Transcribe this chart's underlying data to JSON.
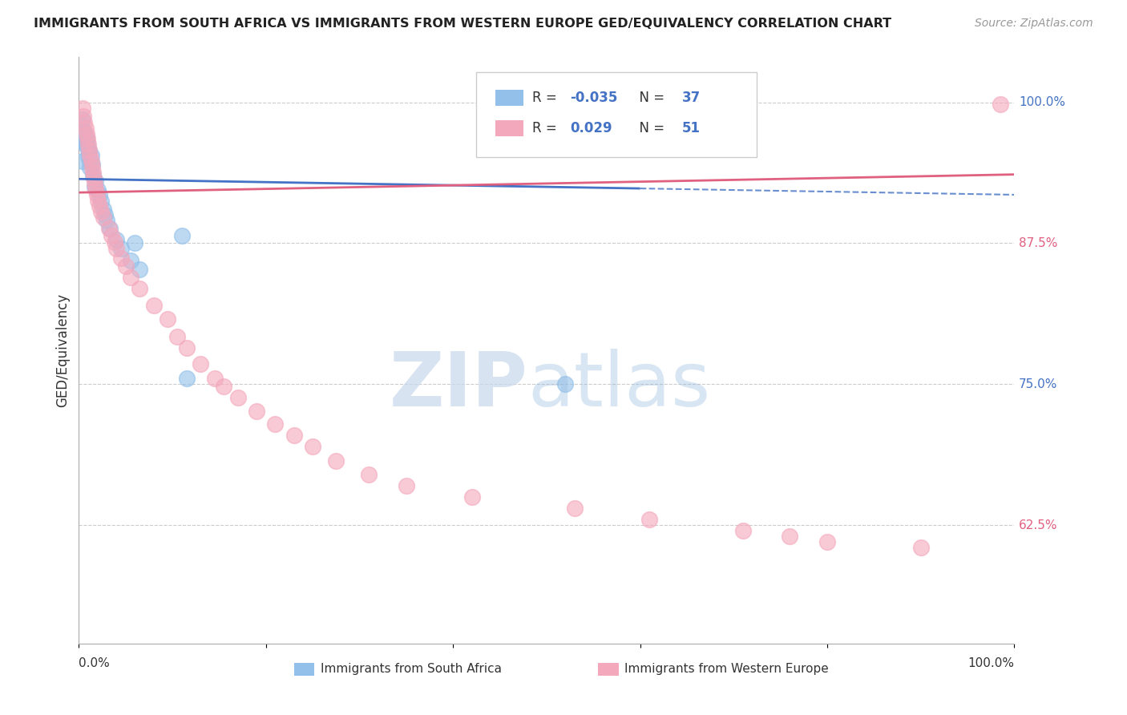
{
  "title": "IMMIGRANTS FROM SOUTH AFRICA VS IMMIGRANTS FROM WESTERN EUROPE GED/EQUIVALENCY CORRELATION CHART",
  "source": "Source: ZipAtlas.com",
  "ylabel": "GED/Equivalency",
  "ytick_values": [
    0.625,
    0.75,
    0.875,
    1.0
  ],
  "xlim": [
    0.0,
    1.0
  ],
  "ylim": [
    0.52,
    1.04
  ],
  "legend_r_blue": "-0.035",
  "legend_n_blue": "37",
  "legend_r_pink": "0.029",
  "legend_n_pink": "51",
  "legend_label_blue": "Immigrants from South Africa",
  "legend_label_pink": "Immigrants from Western Europe",
  "blue_color": "#92C0EA",
  "pink_color": "#F4A8BC",
  "blue_line_color": "#4472C4",
  "pink_line_color": "#E06080",
  "blue_scatter": [
    [
      0.002,
      0.98
    ],
    [
      0.003,
      0.975
    ],
    [
      0.004,
      0.985
    ],
    [
      0.005,
      0.975
    ],
    [
      0.005,
      0.968
    ],
    [
      0.006,
      0.972
    ],
    [
      0.006,
      0.965
    ],
    [
      0.007,
      0.97
    ],
    [
      0.007,
      0.962
    ],
    [
      0.008,
      0.968
    ],
    [
      0.009,
      0.963
    ],
    [
      0.01,
      0.958
    ],
    [
      0.01,
      0.952
    ],
    [
      0.011,
      0.957
    ],
    [
      0.012,
      0.948
    ],
    [
      0.012,
      0.942
    ],
    [
      0.013,
      0.953
    ],
    [
      0.014,
      0.945
    ],
    [
      0.015,
      0.935
    ],
    [
      0.017,
      0.925
    ],
    [
      0.018,
      0.93
    ],
    [
      0.02,
      0.922
    ],
    [
      0.022,
      0.918
    ],
    [
      0.024,
      0.912
    ],
    [
      0.026,
      0.905
    ],
    [
      0.028,
      0.9
    ],
    [
      0.03,
      0.895
    ],
    [
      0.033,
      0.888
    ],
    [
      0.04,
      0.878
    ],
    [
      0.045,
      0.87
    ],
    [
      0.055,
      0.86
    ],
    [
      0.065,
      0.852
    ],
    [
      0.11,
      0.882
    ],
    [
      0.115,
      0.755
    ],
    [
      0.52,
      0.75
    ],
    [
      0.06,
      0.875
    ],
    [
      0.004,
      0.948
    ]
  ],
  "pink_scatter": [
    [
      0.004,
      0.995
    ],
    [
      0.005,
      0.988
    ],
    [
      0.006,
      0.982
    ],
    [
      0.007,
      0.977
    ],
    [
      0.008,
      0.972
    ],
    [
      0.009,
      0.968
    ],
    [
      0.01,
      0.963
    ],
    [
      0.011,
      0.958
    ],
    [
      0.012,
      0.953
    ],
    [
      0.013,
      0.948
    ],
    [
      0.014,
      0.943
    ],
    [
      0.015,
      0.938
    ],
    [
      0.016,
      0.933
    ],
    [
      0.017,
      0.928
    ],
    [
      0.018,
      0.923
    ],
    [
      0.019,
      0.918
    ],
    [
      0.02,
      0.913
    ],
    [
      0.022,
      0.908
    ],
    [
      0.024,
      0.903
    ],
    [
      0.026,
      0.898
    ],
    [
      0.032,
      0.888
    ],
    [
      0.035,
      0.882
    ],
    [
      0.038,
      0.876
    ],
    [
      0.04,
      0.87
    ],
    [
      0.045,
      0.862
    ],
    [
      0.05,
      0.855
    ],
    [
      0.055,
      0.845
    ],
    [
      0.065,
      0.835
    ],
    [
      0.08,
      0.82
    ],
    [
      0.095,
      0.808
    ],
    [
      0.105,
      0.792
    ],
    [
      0.115,
      0.782
    ],
    [
      0.13,
      0.768
    ],
    [
      0.145,
      0.755
    ],
    [
      0.155,
      0.748
    ],
    [
      0.17,
      0.738
    ],
    [
      0.19,
      0.726
    ],
    [
      0.21,
      0.715
    ],
    [
      0.23,
      0.705
    ],
    [
      0.25,
      0.695
    ],
    [
      0.275,
      0.682
    ],
    [
      0.31,
      0.67
    ],
    [
      0.35,
      0.66
    ],
    [
      0.42,
      0.65
    ],
    [
      0.53,
      0.64
    ],
    [
      0.61,
      0.63
    ],
    [
      0.71,
      0.62
    ],
    [
      0.76,
      0.615
    ],
    [
      0.8,
      0.61
    ],
    [
      0.9,
      0.605
    ],
    [
      0.985,
      0.998
    ]
  ],
  "blue_trend_start_y": 0.932,
  "blue_trend_end_y": 0.918,
  "pink_trend_start_y": 0.92,
  "pink_trend_end_y": 0.936
}
